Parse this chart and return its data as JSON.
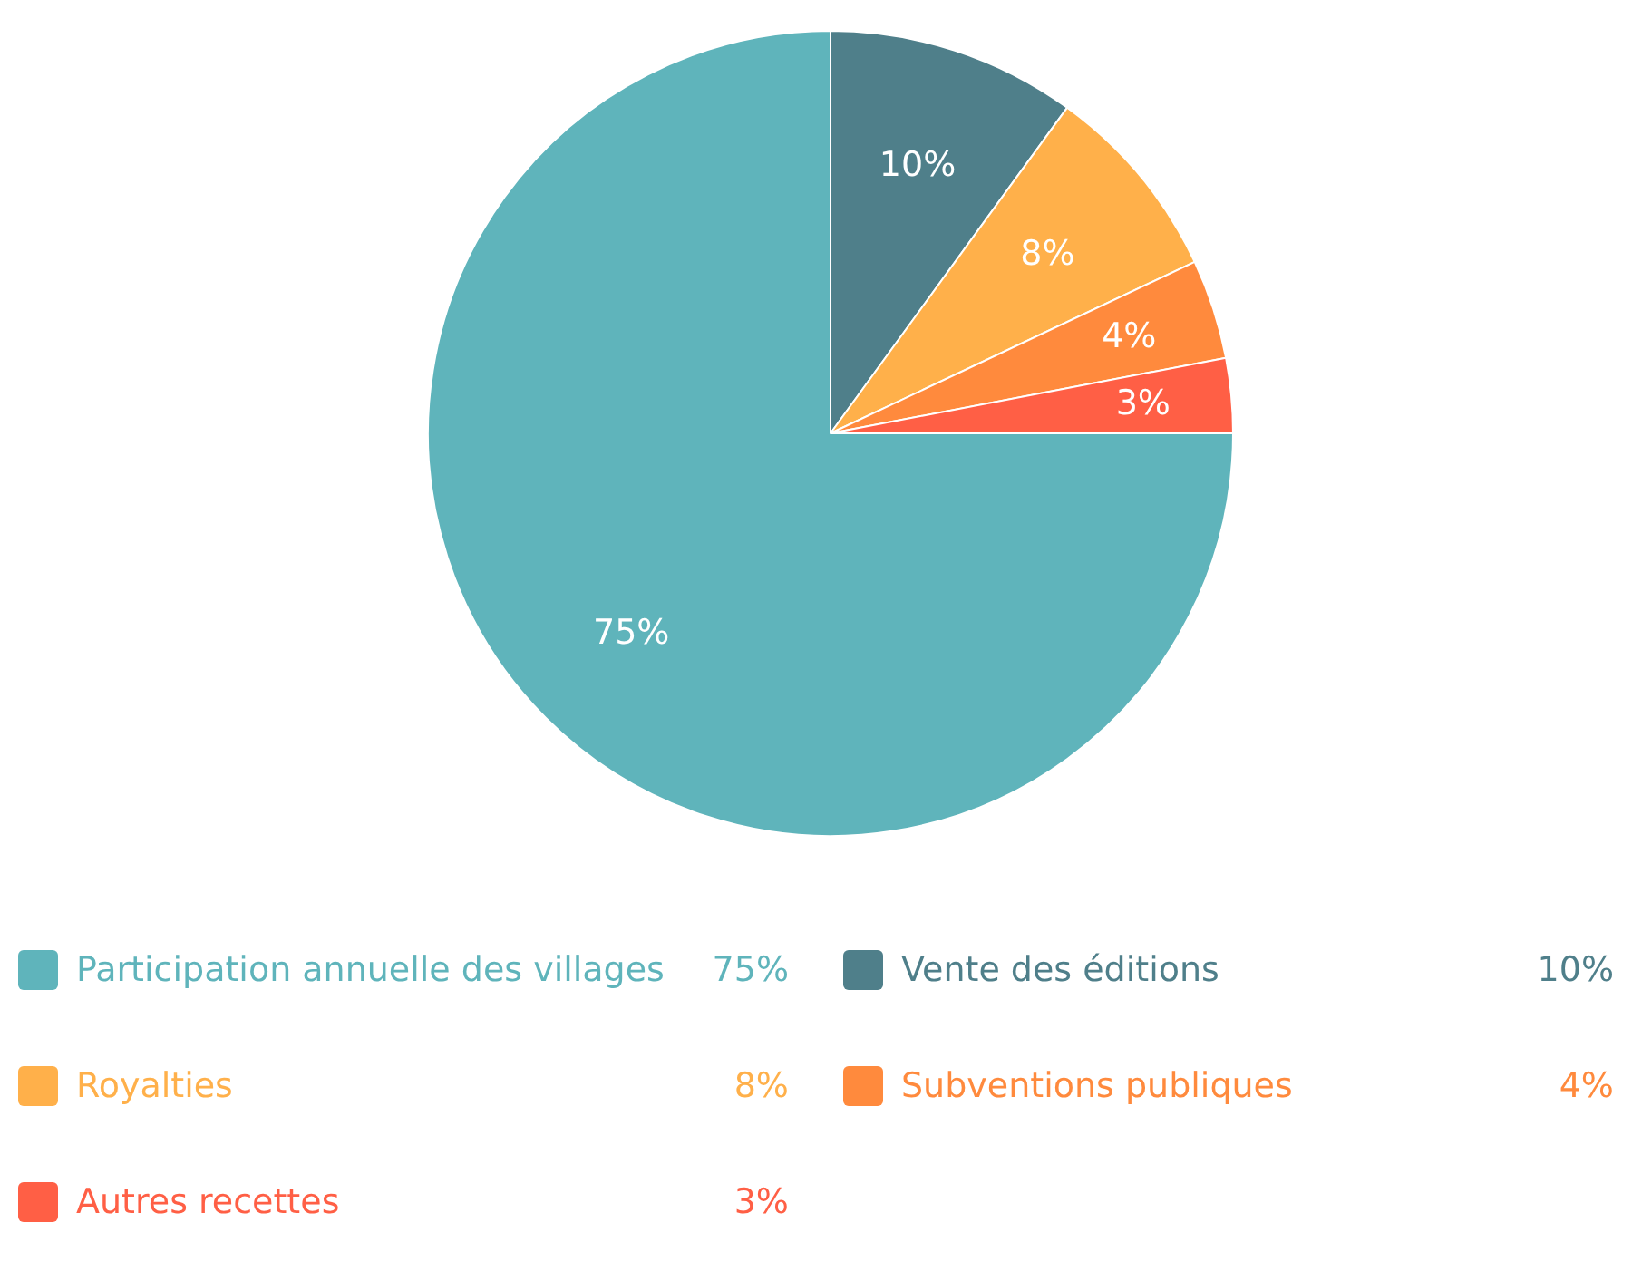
{
  "chart_data": {
    "type": "pie",
    "categories": [
      "Participation annuelle des villages",
      "Vente des éditions",
      "Royalties",
      "Subventions publiques",
      "Autres recettes"
    ],
    "values": [
      75,
      10,
      8,
      4,
      3
    ],
    "colors": [
      "#5fb4bb",
      "#4f7f8a",
      "#ffb04a",
      "#ff8a3d",
      "#ff5f45"
    ],
    "value_labels": [
      "75%",
      "10%",
      "8%",
      "4%",
      "3%"
    ],
    "legend": "bottom"
  }
}
